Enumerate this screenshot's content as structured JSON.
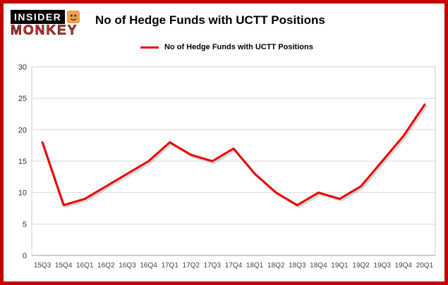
{
  "logo": {
    "line1": "INSIDER",
    "line2": "MONKEY"
  },
  "header": {
    "title": "No of Hedge Funds with UCTT Positions"
  },
  "legend": {
    "label": "No of Hedge Funds with UCTT Positions"
  },
  "chart_data": {
    "type": "line",
    "title": "No of Hedge Funds with UCTT Positions",
    "categories": [
      "15Q3",
      "15Q4",
      "16Q1",
      "16Q2",
      "16Q3",
      "16Q4",
      "17Q1",
      "17Q2",
      "17Q3",
      "17Q4",
      "18Q1",
      "18Q2",
      "18Q3",
      "18Q4",
      "19Q1",
      "19Q2",
      "19Q3",
      "19Q4",
      "20Q1"
    ],
    "series": [
      {
        "name": "No of Hedge Funds with UCTT Positions",
        "values": [
          18,
          8,
          9,
          11,
          13,
          15,
          18,
          16,
          15,
          17,
          13,
          10,
          8,
          10,
          9,
          11,
          15,
          19,
          24
        ]
      }
    ],
    "xlabel": "",
    "ylabel": "",
    "ylim": [
      0,
      30
    ],
    "yticks": [
      0,
      5,
      10,
      15,
      20,
      25,
      30
    ],
    "grid": true,
    "legend_position": "top",
    "line_color": "#e80000"
  },
  "colors": {
    "accent": "#e80000",
    "frame": "#c40000",
    "grid": "#d9d9d9",
    "axis": "#999999",
    "tick_text": "#333333"
  }
}
